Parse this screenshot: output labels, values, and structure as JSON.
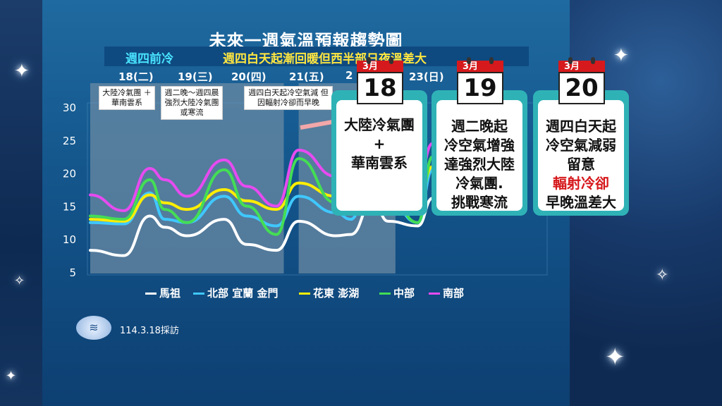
{
  "title": "未來一週氣溫預報趨勢圖",
  "subtitle": {
    "left": "週四前冷",
    "right": "週四白天起漸回暖但西半部日夜溫差大"
  },
  "days": [
    "18(二)",
    "19(三)",
    "20(四)",
    "21(五)",
    "2",
    "23(日)"
  ],
  "notes": [
    {
      "text": "大陸冷氣團 ＋華南雲系"
    },
    {
      "text": "週二晚～週四晨 強烈大陸冷氣團 或寒流"
    },
    {
      "text": "週四白天起冷空氣減 但因輻射冷卻而早晚"
    }
  ],
  "cards": [
    {
      "cal_month": "3月",
      "cal_day": "18",
      "lines": [
        "大陸冷氣團",
        "+",
        "華南雲系"
      ]
    },
    {
      "cal_month": "3月",
      "cal_day": "19",
      "lines": [
        "週二晚起",
        "冷空氣增強",
        "達強烈大陸",
        "冷氣團.",
        "挑戰寒流"
      ]
    },
    {
      "cal_month": "3月",
      "cal_day": "20",
      "lines": [
        "週四白天起",
        "冷空氣減弱",
        "留意",
        "輻射冷卻",
        "早晚溫差大"
      ],
      "red_line": 3
    }
  ],
  "date_text": "114.3.18採訪",
  "colors": {
    "mazu": "#ffffff",
    "north": "#3fc8ff",
    "hualien": "#ffee00",
    "central": "#44dd55",
    "south": "#e64bf0"
  },
  "chart_data": {
    "type": "line",
    "ylim": [
      5,
      30
    ],
    "yticks": [
      5,
      10,
      15,
      20,
      25,
      30
    ],
    "x_range": [
      0,
      6.1
    ],
    "shaded_ranges": [
      [
        0,
        2.6
      ],
      [
        2.8,
        4.1
      ]
    ],
    "legend_position": "bottom",
    "series": [
      {
        "name": "馬祖",
        "color": "#ffffff",
        "x": [
          0,
          0.45,
          0.8,
          1.0,
          1.3,
          1.8,
          2.1,
          2.5,
          2.8,
          3.3,
          3.5,
          3.8,
          4.0,
          4.4,
          4.6,
          4.9,
          5.1,
          5.5,
          5.7,
          5.8
        ],
        "values": [
          8.3,
          7.5,
          13.5,
          11.8,
          10.5,
          13.0,
          9.2,
          8.3,
          12.7,
          10.5,
          10.7,
          15.8,
          12.7,
          12.0,
          16.2,
          14.4,
          14.0,
          19.0,
          15.5,
          15.5
        ]
      },
      {
        "name": "北部 宜蘭 金門",
        "color": "#3fc8ff",
        "x": [
          0,
          0.45,
          0.8,
          1.0,
          1.3,
          1.8,
          2.1,
          2.5,
          2.8,
          3.3,
          3.5,
          3.8,
          4.0,
          4.4,
          4.6,
          4.9,
          5.1,
          5.5,
          5.7
        ],
        "values": [
          12.5,
          12.3,
          17.0,
          13.0,
          12.5,
          16.5,
          13.5,
          12.0,
          16.5,
          14.0,
          13.0,
          21.5,
          16.0,
          12.5,
          20.5,
          17.0,
          14.0,
          22.0,
          19.0
        ]
      },
      {
        "name": "花東 澎湖",
        "color": "#ffee00",
        "x": [
          0,
          0.45,
          0.8,
          1.0,
          1.3,
          1.8,
          2.1,
          2.5,
          2.8,
          3.3,
          3.5,
          3.8,
          4.0,
          4.4,
          4.6,
          4.9,
          5.1,
          5.5,
          5.7
        ],
        "values": [
          13.0,
          12.7,
          16.7,
          15.5,
          14.5,
          17.5,
          15.8,
          14.5,
          18.5,
          16.5,
          15.5,
          20.0,
          17.5,
          15.5,
          21.0,
          18.5,
          17.0,
          22.0,
          20.0
        ]
      },
      {
        "name": "中部",
        "color": "#44dd55",
        "x": [
          0,
          0.45,
          0.8,
          1.0,
          1.3,
          1.8,
          2.1,
          2.5,
          2.8,
          3.3,
          3.5,
          3.8,
          4.0,
          4.4,
          4.6,
          4.9,
          5.1,
          5.5,
          5.7
        ],
        "values": [
          13.5,
          13.0,
          19.0,
          14.5,
          12.5,
          20.5,
          15.0,
          10.7,
          22.2,
          15.5,
          14.0,
          23.0,
          17.0,
          12.5,
          22.5,
          16.0,
          13.8,
          23.0,
          19.5
        ]
      },
      {
        "name": "南部",
        "color": "#e64bf0",
        "x": [
          0,
          0.45,
          0.8,
          1.0,
          1.3,
          1.8,
          2.1,
          2.5,
          2.8,
          3.3,
          3.5,
          3.8,
          4.0,
          4.4,
          4.6,
          4.9,
          5.1,
          5.5,
          5.7
        ],
        "values": [
          16.7,
          14.3,
          20.7,
          19.0,
          16.5,
          22.0,
          18.0,
          15.0,
          23.5,
          19.5,
          18.5,
          24.5,
          21.0,
          18.5,
          24.5,
          21.5,
          19.0,
          25.0,
          22.0
        ]
      }
    ]
  }
}
